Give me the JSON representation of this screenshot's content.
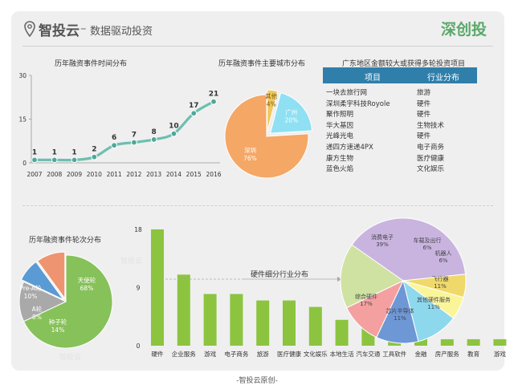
{
  "header": {
    "brand_name": "智投云",
    "separator": "–",
    "tagline": "数据驱动投资",
    "partner": "深创投"
  },
  "footer": {
    "credit": "-智投云原创-"
  },
  "watermark": {
    "left_text": "智投云"
  },
  "colors": {
    "panel_bg": "#efefef",
    "line": "#6dbfb0",
    "header_table": "#2f7faa",
    "green": "#8cc43f",
    "pie_other": "#f0c85e",
    "pie_guangzhou": "#8fe0f3",
    "pie_shenzhen": "#f5a766",
    "round_angel": "#87c15a",
    "round_seed": "#a9a9a9",
    "round_a": "#5b9bd5",
    "round_prea": "#ee9470"
  },
  "chart_data": [
    {
      "type": "line",
      "title": "历年融资事件时间分布",
      "x": [
        "2007",
        "2008",
        "2009",
        "2010",
        "2011",
        "2012",
        "2013",
        "2014",
        "2015",
        "2016"
      ],
      "values": [
        1,
        1,
        1,
        2,
        6,
        7,
        8,
        10,
        17,
        21
      ],
      "ylim": [
        0,
        30
      ],
      "yticks": [
        "0",
        "15",
        "30"
      ],
      "grid": false
    },
    {
      "type": "pie",
      "title": "历年融资事件主要城市分布",
      "slices": [
        {
          "label": "其他",
          "value": 4,
          "text": "4%",
          "color": "#f0c85e"
        },
        {
          "label": "广州",
          "value": 20,
          "text": "20%",
          "color": "#8fe0f3"
        },
        {
          "label": "深圳",
          "value": 76,
          "text": "76%",
          "color": "#f5a766"
        }
      ]
    },
    {
      "type": "table",
      "title": "广东地区金额较大或获得多轮投资项目",
      "columns": [
        "项目",
        "行业分布"
      ],
      "rows": [
        [
          "一块去旅行网",
          "旅游"
        ],
        [
          "深圳柔宇科技Royole",
          "硬件"
        ],
        [
          "聚作照明",
          "硬件"
        ],
        [
          "华大基因",
          "生物技术"
        ],
        [
          "光峰光电",
          "硬件"
        ],
        [
          "递四方速递4PX",
          "电子商务"
        ],
        [
          "康方生物",
          "医疗健康"
        ],
        [
          "蓝色火焰",
          "文化娱乐"
        ]
      ]
    },
    {
      "type": "pie",
      "title": "历年融资事件轮次分布",
      "slices": [
        {
          "label": "天使轮",
          "value": 68,
          "text": "68%",
          "color": "#87c15a"
        },
        {
          "label": "种子轮",
          "value": 14,
          "text": "14%",
          "color": "#a9a9a9"
        },
        {
          "label": "A轮",
          "value": 8,
          "text": "8%",
          "color": "#5b9bd5"
        },
        {
          "label": "Pre-A轮",
          "value": 10,
          "text": "10%",
          "color": "#ee9470"
        }
      ]
    },
    {
      "type": "bar",
      "title": "",
      "categories": [
        "硬件",
        "企业服务",
        "游戏",
        "电子商务",
        "旅游",
        "医疗健康",
        "文化娱乐",
        "本地生活",
        "汽车交通",
        "工具软件",
        "金融",
        "房产服务",
        "教育",
        "游戏"
      ],
      "values": [
        18,
        11,
        8,
        8,
        7,
        7,
        6,
        4,
        4,
        3,
        3,
        1,
        1,
        1
      ],
      "ylim": [
        0,
        18
      ],
      "yticks": [
        "0",
        "9",
        "18"
      ]
    },
    {
      "type": "pie",
      "title": "硬件细分行业分布",
      "slices": [
        {
          "label": "消费电子",
          "value": 39,
          "text": "39%",
          "color": "#c9b4e0"
        },
        {
          "label": "车载及出行",
          "value": 6,
          "text": "6%",
          "color": "#f0d96a"
        },
        {
          "label": "机器人",
          "value": 6,
          "text": "6%",
          "color": "#fbf59a"
        },
        {
          "label": "飞行器",
          "value": 11,
          "text": "11%",
          "color": "#8ed8ee"
        },
        {
          "label": "其他硬件服务",
          "value": 11,
          "text": "11%",
          "color": "#6e97d6"
        },
        {
          "label": "芯片半导体",
          "value": 11,
          "text": "11%",
          "color": "#f4a0a0"
        },
        {
          "label": "综合硬件",
          "value": 17,
          "text": "17%",
          "color": "#cfe2a2"
        }
      ]
    }
  ]
}
